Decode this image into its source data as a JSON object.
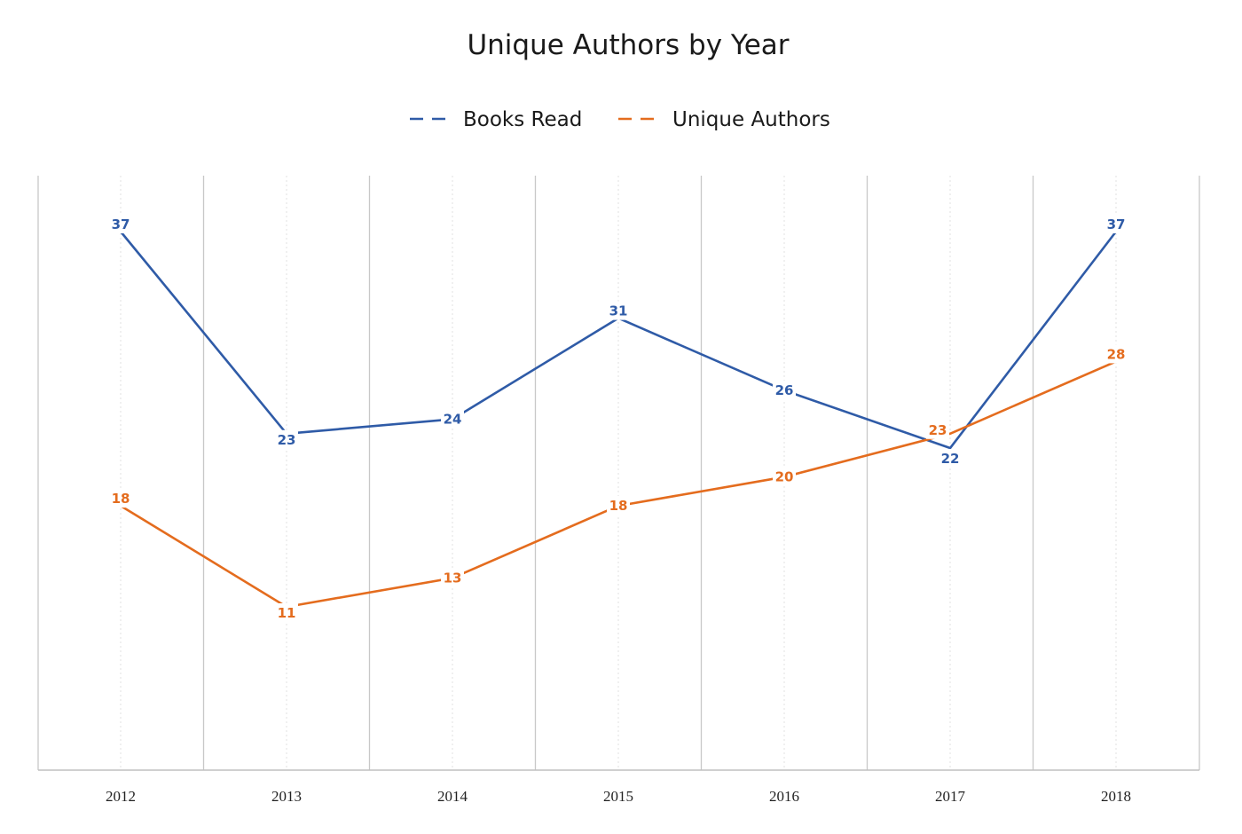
{
  "chart_data": {
    "type": "line",
    "title": "Unique Authors by Year",
    "xlabel": "",
    "ylabel": "",
    "categories": [
      "2012",
      "2013",
      "2014",
      "2015",
      "2016",
      "2017",
      "2018"
    ],
    "series": [
      {
        "name": "Books Read",
        "color": "#2f5ba7",
        "values": [
          37,
          23,
          24,
          31,
          26,
          22,
          37
        ]
      },
      {
        "name": "Unique Authors",
        "color": "#e46c1e",
        "values": [
          18,
          11,
          13,
          18,
          20,
          23,
          28
        ]
      }
    ],
    "ylim": [
      0,
      40
    ],
    "grid": {
      "vertical_major": true,
      "vertical_minor_dotted": true,
      "horizontal": false
    },
    "legend": "top-center",
    "data_labels": true,
    "y_axis_visible": false
  }
}
